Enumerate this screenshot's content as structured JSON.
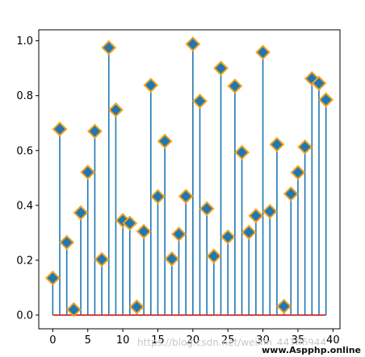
{
  "chart_data": {
    "type": "stem",
    "title": "",
    "xlabel": "",
    "ylabel": "",
    "xlim": [
      -2,
      41
    ],
    "ylim": [
      -0.05,
      1.04
    ],
    "xticks": [
      0,
      5,
      10,
      15,
      20,
      25,
      30,
      35,
      40
    ],
    "yticks": [
      0.0,
      0.2,
      0.4,
      0.6,
      0.8,
      1.0
    ],
    "xtick_labels": [
      "0",
      "5",
      "10",
      "15",
      "20",
      "25",
      "30",
      "35",
      "40"
    ],
    "ytick_labels": [
      "0.0",
      "0.2",
      "0.4",
      "0.6",
      "0.8",
      "1.0"
    ],
    "grid": false,
    "legend": "none",
    "x": [
      0,
      1,
      2,
      3,
      4,
      5,
      6,
      7,
      8,
      9,
      10,
      11,
      12,
      13,
      14,
      15,
      16,
      17,
      18,
      19,
      20,
      21,
      22,
      23,
      24,
      25,
      26,
      27,
      28,
      29,
      30,
      31,
      32,
      33,
      34,
      35,
      36,
      37,
      38,
      39
    ],
    "y": [
      0.135,
      0.678,
      0.265,
      0.02,
      0.373,
      0.521,
      0.67,
      0.203,
      0.975,
      0.748,
      0.345,
      0.335,
      0.03,
      0.305,
      0.838,
      0.432,
      0.634,
      0.205,
      0.295,
      0.433,
      0.988,
      0.78,
      0.388,
      0.215,
      0.9,
      0.285,
      0.835,
      0.593,
      0.302,
      0.362,
      0.958,
      0.378,
      0.622,
      0.032,
      0.442,
      0.52,
      0.613,
      0.862,
      0.845,
      0.785
    ],
    "colors": {
      "stem": "#1f77b4",
      "marker_face": "#1f77b4",
      "marker_edge": "#f5a31a",
      "baseline": "#d62728"
    },
    "marker": "diamond"
  },
  "watermarks": {
    "overlay": "https://blog.csdn.net/weixin_44186944",
    "site": "www.Aspphp.online"
  }
}
